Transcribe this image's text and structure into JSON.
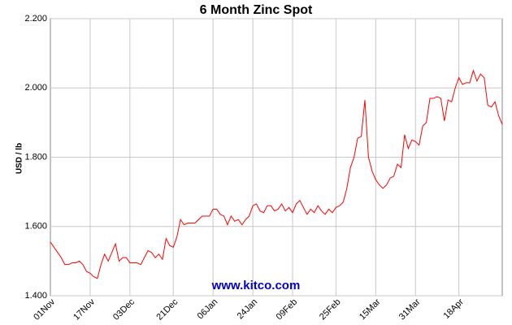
{
  "chart_data": {
    "type": "line",
    "title": "6 Month Zinc Spot",
    "y_label": "USD / lb",
    "watermark": "www.kitco.com",
    "categories": [
      "01Nov",
      null,
      null,
      null,
      null,
      null,
      null,
      null,
      null,
      null,
      null,
      "17Nov",
      null,
      null,
      null,
      null,
      null,
      null,
      null,
      null,
      null,
      null,
      "03Dec",
      null,
      null,
      null,
      null,
      null,
      null,
      null,
      null,
      null,
      null,
      null,
      "21Dec",
      null,
      null,
      null,
      null,
      null,
      null,
      null,
      null,
      null,
      null,
      "06Jan",
      null,
      null,
      null,
      null,
      null,
      null,
      null,
      null,
      null,
      null,
      "24Jan",
      null,
      null,
      null,
      null,
      null,
      null,
      null,
      null,
      null,
      null,
      "09Feb",
      null,
      null,
      null,
      null,
      null,
      null,
      null,
      null,
      null,
      null,
      null,
      "25Feb",
      null,
      null,
      null,
      null,
      null,
      null,
      null,
      null,
      null,
      null,
      "15Mar",
      null,
      null,
      null,
      null,
      null,
      null,
      null,
      null,
      null,
      null,
      "31Mar",
      null,
      null,
      null,
      null,
      null,
      null,
      null,
      null,
      null,
      null,
      null,
      "18Apr",
      null,
      null,
      null,
      null,
      null,
      null,
      null,
      null,
      null,
      null,
      null,
      null
    ],
    "values": [
      1.555,
      1.54,
      1.525,
      1.51,
      1.49,
      1.49,
      1.495,
      1.495,
      1.5,
      1.49,
      1.47,
      1.465,
      1.455,
      1.45,
      1.49,
      1.52,
      1.5,
      1.525,
      1.55,
      1.5,
      1.51,
      1.51,
      1.495,
      1.495,
      1.495,
      1.49,
      1.51,
      1.53,
      1.525,
      1.51,
      1.52,
      1.505,
      1.565,
      1.545,
      1.54,
      1.57,
      1.62,
      1.605,
      1.61,
      1.61,
      1.61,
      1.62,
      1.63,
      1.63,
      1.63,
      1.65,
      1.65,
      1.635,
      1.63,
      1.605,
      1.63,
      1.615,
      1.62,
      1.605,
      1.62,
      1.63,
      1.66,
      1.665,
      1.645,
      1.64,
      1.66,
      1.66,
      1.645,
      1.65,
      1.665,
      1.645,
      1.655,
      1.64,
      1.665,
      1.675,
      1.655,
      1.635,
      1.65,
      1.64,
      1.66,
      1.645,
      1.635,
      1.65,
      1.64,
      1.655,
      1.66,
      1.67,
      1.71,
      1.77,
      1.8,
      1.855,
      1.86,
      1.965,
      1.8,
      1.76,
      1.735,
      1.72,
      1.71,
      1.72,
      1.74,
      1.745,
      1.78,
      1.77,
      1.865,
      1.825,
      1.85,
      1.845,
      1.835,
      1.89,
      1.9,
      1.97,
      1.97,
      1.975,
      1.97,
      1.905,
      1.965,
      1.96,
      2.0,
      2.03,
      2.01,
      2.015,
      2.015,
      2.05,
      2.02,
      2.04,
      2.03,
      1.95,
      1.945,
      1.96,
      1.92,
      1.895
    ],
    "color": "#ff0000",
    "ylim": [
      1.4,
      2.2
    ],
    "yticks": [
      {
        "value": 1.4,
        "label": "1.400"
      },
      {
        "value": 1.6,
        "label": "1.600"
      },
      {
        "value": 1.8,
        "label": "1.800"
      },
      {
        "value": 2.0,
        "label": "2.000"
      },
      {
        "value": 2.2,
        "label": "2.200"
      }
    ],
    "grid": true
  }
}
